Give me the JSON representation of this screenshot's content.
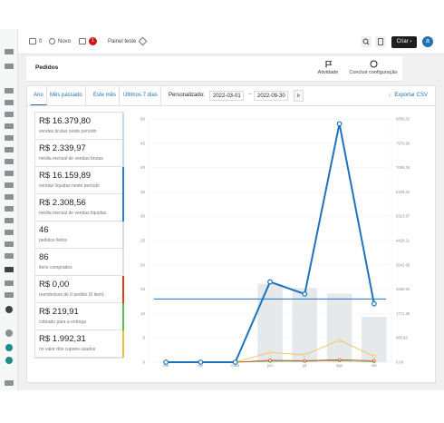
{
  "topbar": {
    "comments_count": "0",
    "new_label": "Novo",
    "notification_count": "1",
    "panel_label": "Painel teste",
    "create_label": "Criar",
    "avatar_letter": "a"
  },
  "page": {
    "title": "Pedidos",
    "activity_label": "Atividade",
    "finish_setup_label": "Concluir configuração"
  },
  "filters": {
    "tabs": [
      "Ano",
      "Mês passado",
      "Este mês",
      "Últimos 7 dias"
    ],
    "custom_label": "Personalizado:",
    "date_from": "2022-03-01",
    "date_sep": "–",
    "date_to": "2022-09-30",
    "go_label": "Ir",
    "export_label": "Exportar CSV"
  },
  "stats": [
    {
      "value": "R$ 16.379,80",
      "label": "vendas brutas neste período",
      "color": "#bde0f3"
    },
    {
      "value": "R$ 2.339,97",
      "label": "média mensal de vendas brutas",
      "color": "#bde0f3"
    },
    {
      "value": "R$ 16.159,89",
      "label": "vendas líquidas neste período",
      "color": "#2e7fd0"
    },
    {
      "value": "R$ 2.308,56",
      "label": "média mensal de vendas líquidas",
      "color": "#2e7fd0"
    },
    {
      "value": "46",
      "label": "pedidos feitos",
      "color": "#dbdbdb"
    },
    {
      "value": "86",
      "label": "itens comprados",
      "color": "#e0e0e0"
    },
    {
      "value": "R$ 0,00",
      "label": "reembolsos de 0 pedido (0 item)",
      "color": "#e2401c"
    },
    {
      "value": "R$ 219,91",
      "label": "cobrado para a entrega",
      "color": "#5cb85c"
    },
    {
      "value": "R$ 1.992,31",
      "label": "no valor dos cupons usados",
      "color": "#f0c040"
    }
  ],
  "chart_data": {
    "type": "line",
    "categories": [
      "mar",
      "abr",
      "maio",
      "jun",
      "jul",
      "ago",
      "set"
    ],
    "y_left": {
      "ticks": [
        0,
        5,
        10,
        15,
        20,
        25,
        30,
        35,
        40,
        45,
        50
      ],
      "range": [
        0,
        50
      ]
    },
    "y_right": {
      "ticks": [
        "0.00",
        "885.68",
        "1771.35",
        "2656.93",
        "3542.69",
        "4428.21",
        "5313.87",
        "6199.63",
        "7085.36",
        "7970.96",
        "8856.62"
      ],
      "range": [
        0,
        8856.62
      ]
    },
    "bars": [
      0,
      0,
      0,
      2850,
      2700,
      2500,
      1650
    ],
    "series": [
      {
        "name": "",
        "color": "#1e73be",
        "values": [
          0,
          0,
          0,
          16.5,
          14,
          49,
          12
        ]
      },
      {
        "name": "",
        "color": "#f0c040",
        "values": [
          0,
          0,
          0,
          2,
          1.5,
          4.5,
          1.2
        ]
      },
      {
        "name": "",
        "color": "#e2401c",
        "values": [
          0,
          0,
          0,
          0.4,
          0.3,
          0.5,
          0.3
        ]
      },
      {
        "name": "",
        "color": "#5cb85c",
        "values": [
          0,
          0,
          0,
          0.2,
          0.2,
          0.3,
          0.1
        ]
      }
    ],
    "average_line": 13
  }
}
